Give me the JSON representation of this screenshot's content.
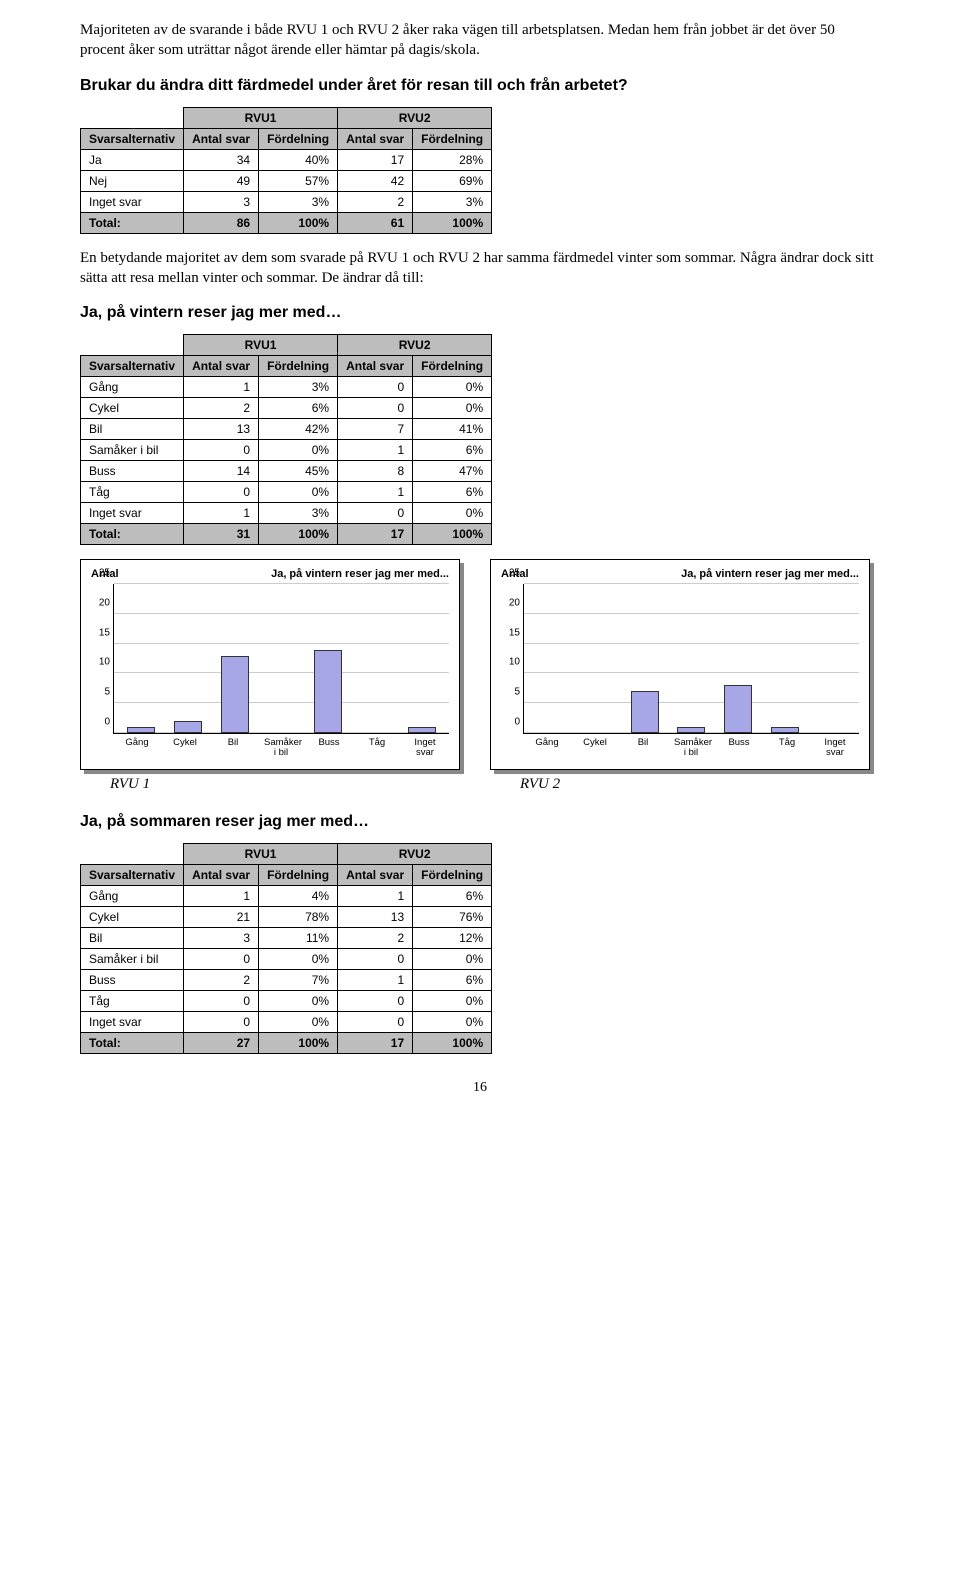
{
  "intro_para": "Majoriteten av de svarande i både RVU 1 och RVU 2 åker raka vägen till arbetsplatsen. Medan hem från jobbet är det över 50 procent åker som uträttar något ärende eller hämtar på dagis/skola.",
  "q1_heading": "Brukar du ändra ditt färdmedel under året för resan till och från arbetet?",
  "table_labels": {
    "svarsalternativ": "Svarsalternativ",
    "antal_svar": "Antal svar",
    "fordelning": "Fördelning",
    "rvu1": "RVU1",
    "rvu2": "RVU2",
    "total": "Total:"
  },
  "t1": {
    "rows": [
      {
        "label": "Ja",
        "a1": "34",
        "f1": "40%",
        "a2": "17",
        "f2": "28%"
      },
      {
        "label": "Nej",
        "a1": "49",
        "f1": "57%",
        "a2": "42",
        "f2": "69%"
      },
      {
        "label": "Inget svar",
        "a1": "3",
        "f1": "3%",
        "a2": "2",
        "f2": "3%"
      }
    ],
    "total": {
      "a1": "86",
      "f1": "100%",
      "a2": "61",
      "f2": "100%"
    }
  },
  "mid_para": "En betydande majoritet av dem som svarade på RVU 1 och RVU 2 har samma färdmedel vinter som sommar. Några ändrar dock sitt sätta att resa mellan vinter och sommar. De ändrar då till:",
  "q2_heading": "Ja, på vintern reser jag mer med…",
  "t2": {
    "rows": [
      {
        "label": "Gång",
        "a1": "1",
        "f1": "3%",
        "a2": "0",
        "f2": "0%"
      },
      {
        "label": "Cykel",
        "a1": "2",
        "f1": "6%",
        "a2": "0",
        "f2": "0%"
      },
      {
        "label": "Bil",
        "a1": "13",
        "f1": "42%",
        "a2": "7",
        "f2": "41%"
      },
      {
        "label": "Samåker i bil",
        "a1": "0",
        "f1": "0%",
        "a2": "1",
        "f2": "6%"
      },
      {
        "label": "Buss",
        "a1": "14",
        "f1": "45%",
        "a2": "8",
        "f2": "47%"
      },
      {
        "label": "Tåg",
        "a1": "0",
        "f1": "0%",
        "a2": "1",
        "f2": "6%"
      },
      {
        "label": "Inget svar",
        "a1": "1",
        "f1": "3%",
        "a2": "0",
        "f2": "0%"
      }
    ],
    "total": {
      "a1": "31",
      "f1": "100%",
      "a2": "17",
      "f2": "100%"
    }
  },
  "charts": {
    "ymax": 25,
    "yticks": [
      0,
      5,
      10,
      15,
      20,
      25
    ],
    "ylabel": "Antal",
    "title": "Ja, på vintern reser jag mer med...",
    "categories": [
      "Gång",
      "Cykel",
      "Bil",
      "Samåker i bil",
      "Buss",
      "Tåg",
      "Inget svar"
    ],
    "bar_color": "#a7a7e8",
    "bar_border": "#333333",
    "grid_color": "#cccccc",
    "left": {
      "values": [
        1,
        2,
        13,
        0,
        14,
        0,
        1
      ]
    },
    "right": {
      "values": [
        0,
        0,
        7,
        1,
        8,
        1,
        0
      ]
    }
  },
  "rvu1_label": "RVU 1",
  "rvu2_label": "RVU 2",
  "q3_heading": "Ja, på sommaren reser jag mer med…",
  "t3": {
    "rows": [
      {
        "label": "Gång",
        "a1": "1",
        "f1": "4%",
        "a2": "1",
        "f2": "6%"
      },
      {
        "label": "Cykel",
        "a1": "21",
        "f1": "78%",
        "a2": "13",
        "f2": "76%"
      },
      {
        "label": "Bil",
        "a1": "3",
        "f1": "11%",
        "a2": "2",
        "f2": "12%"
      },
      {
        "label": "Samåker i bil",
        "a1": "0",
        "f1": "0%",
        "a2": "0",
        "f2": "0%"
      },
      {
        "label": "Buss",
        "a1": "2",
        "f1": "7%",
        "a2": "1",
        "f2": "6%"
      },
      {
        "label": "Tåg",
        "a1": "0",
        "f1": "0%",
        "a2": "0",
        "f2": "0%"
      },
      {
        "label": "Inget svar",
        "a1": "0",
        "f1": "0%",
        "a2": "0",
        "f2": "0%"
      }
    ],
    "total": {
      "a1": "27",
      "f1": "100%",
      "a2": "17",
      "f2": "100%"
    }
  },
  "page_number": "16"
}
